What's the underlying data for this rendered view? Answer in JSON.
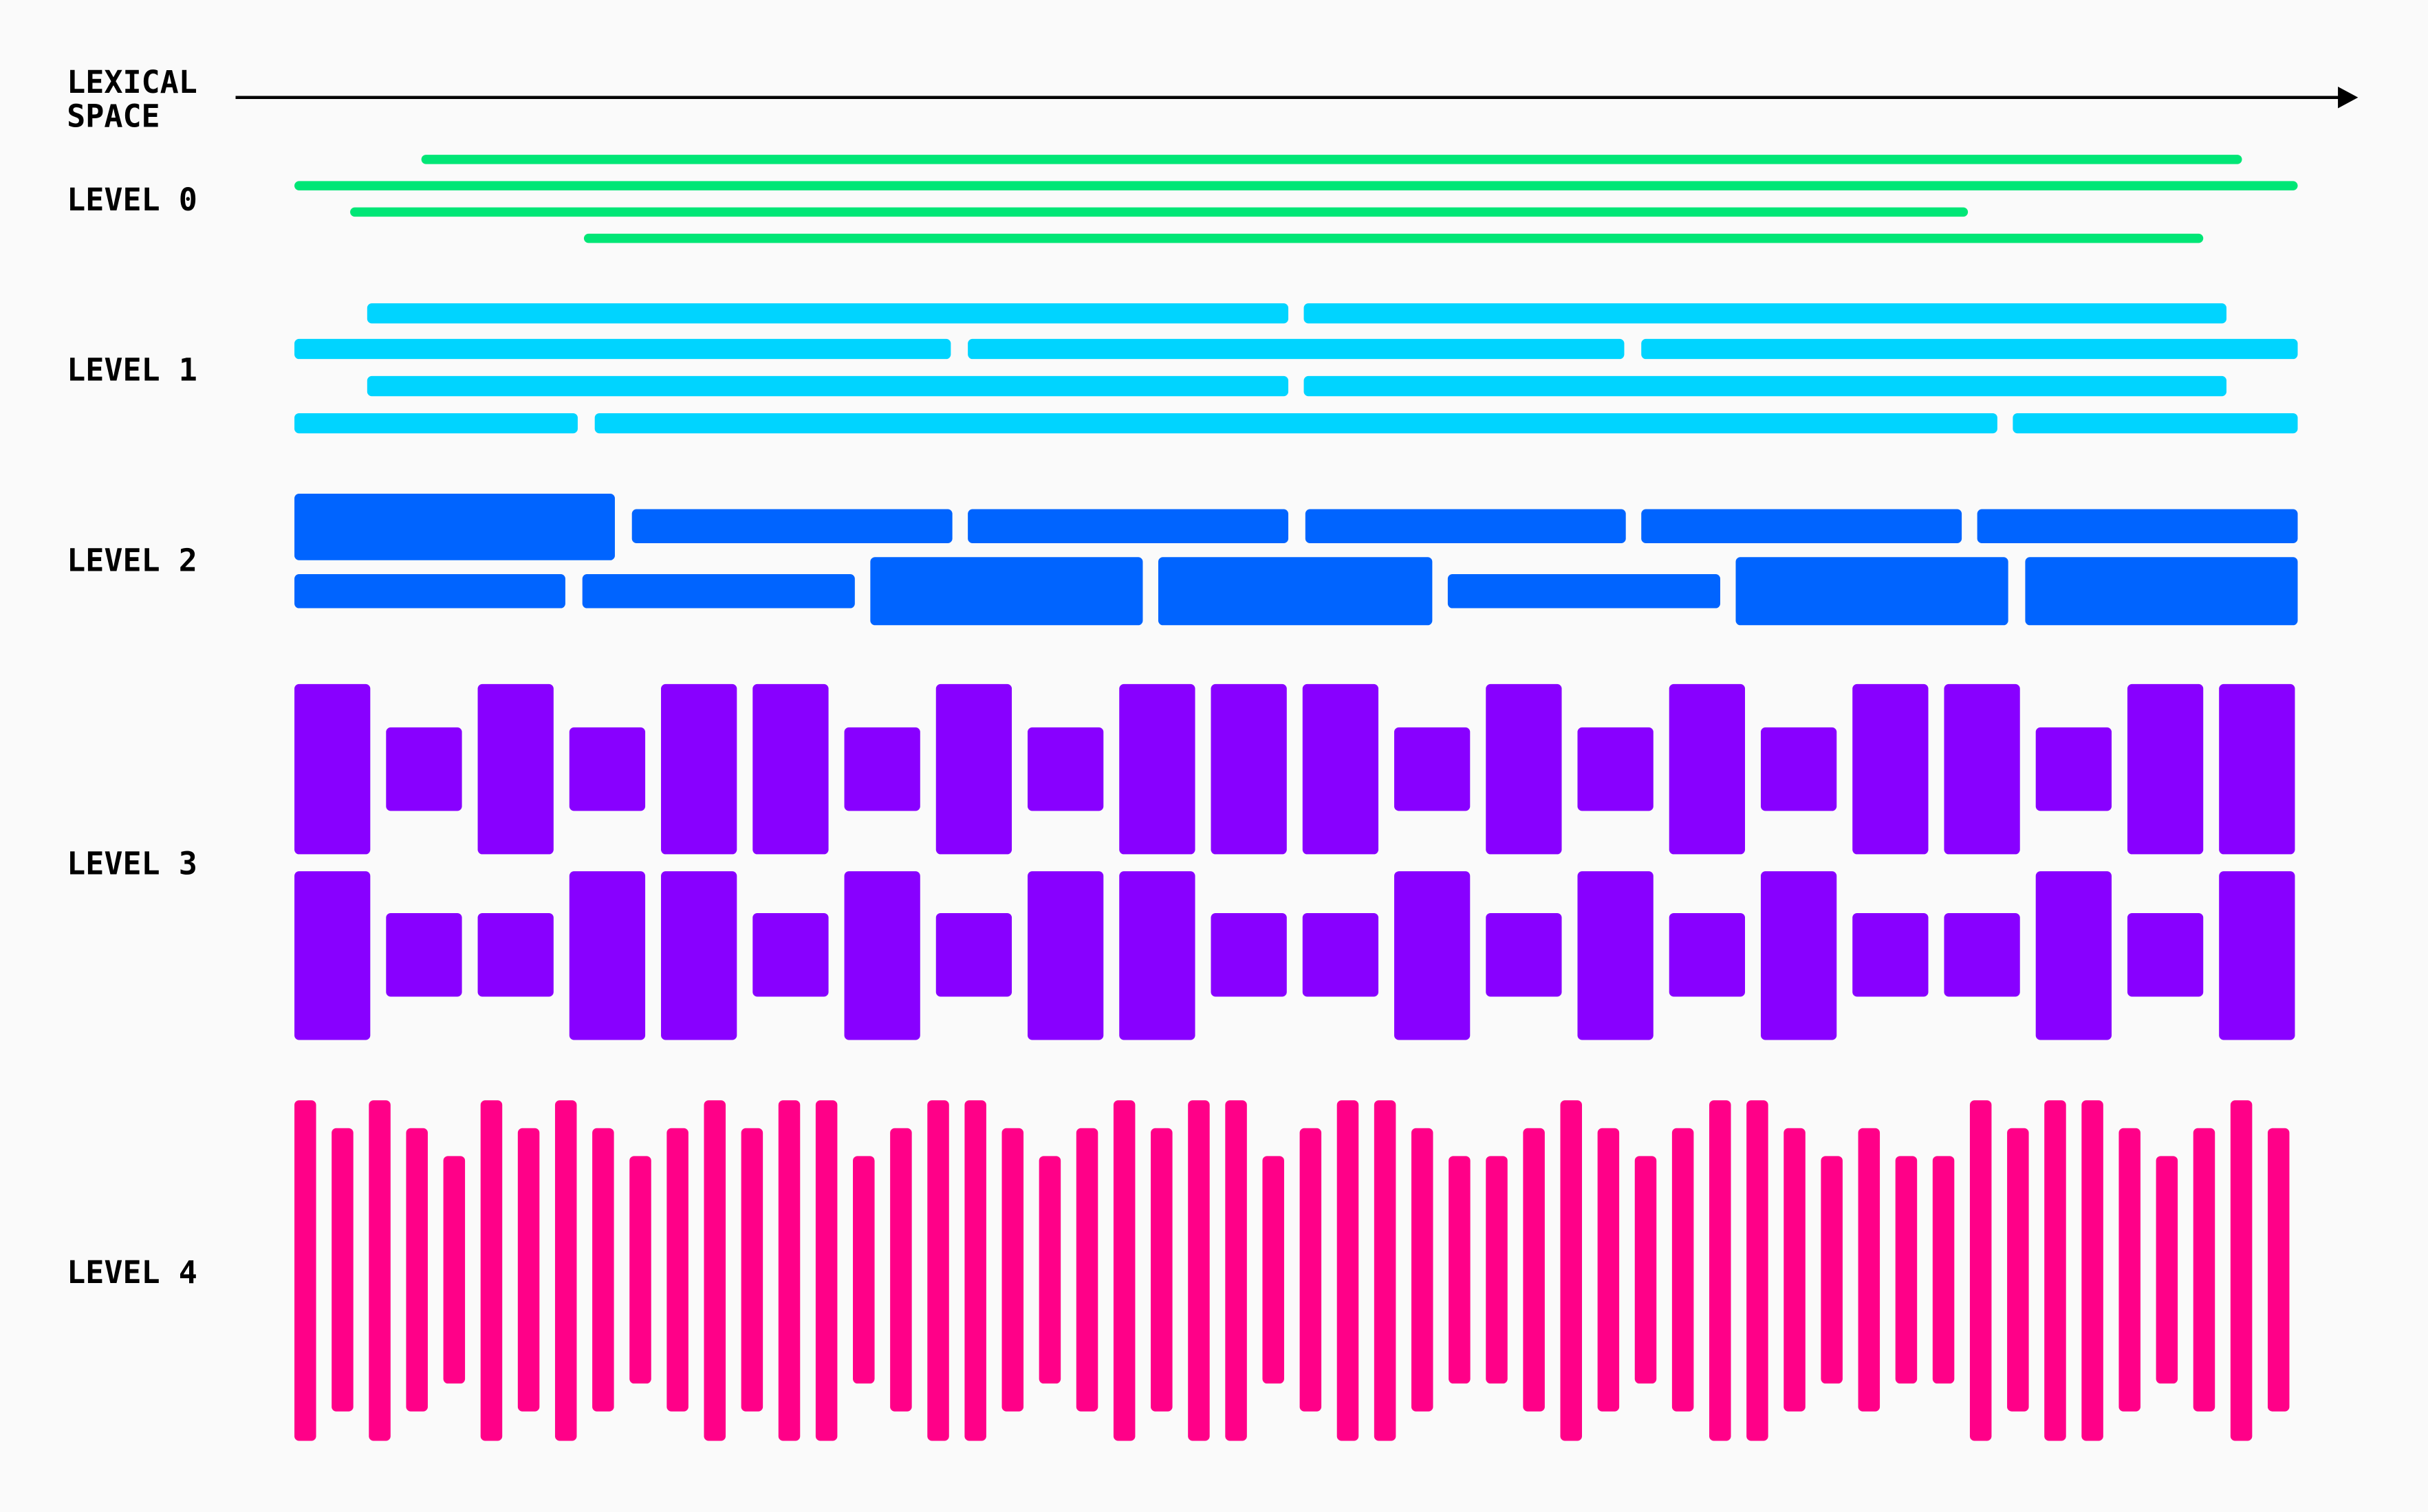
{
  "axis": {
    "label_line1": "LEXICAL",
    "label_line2": "SPACE"
  },
  "levels": [
    {
      "label": "LEVEL 0",
      "color": "#00e676"
    },
    {
      "label": "LEVEL 1",
      "color": "#00d4ff"
    },
    {
      "label": "LEVEL 2",
      "color": "#0064ff"
    },
    {
      "label": "LEVEL 3",
      "color": "#8800ff",
      "rows": [
        [
          "tall",
          "short",
          "tall",
          "short",
          "tall",
          "tall",
          "short",
          "tall",
          "short",
          "tall",
          "tall",
          "tall",
          "short",
          "tall",
          "short",
          "tall",
          "short",
          "tall",
          "tall",
          "short",
          "tall",
          "tall"
        ],
        [
          "tall",
          "short",
          "short",
          "tall",
          "tall",
          "short",
          "tall",
          "short",
          "tall",
          "tall",
          "short",
          "short",
          "tall",
          "short",
          "tall",
          "short",
          "tall",
          "short",
          "short",
          "tall",
          "short",
          "tall"
        ]
      ]
    },
    {
      "label": "LEVEL 4",
      "color": "#ff0088",
      "heights": [
        "full",
        "medium",
        "full",
        "medium",
        "short",
        "full",
        "medium",
        "full",
        "medium",
        "short",
        "medium",
        "full",
        "medium",
        "full",
        "full",
        "short",
        "medium",
        "full",
        "full",
        "medium",
        "short",
        "medium",
        "full",
        "medium",
        "full",
        "full",
        "short",
        "medium",
        "full",
        "full",
        "medium",
        "short",
        "short",
        "medium",
        "full",
        "medium",
        "short",
        "medium",
        "full",
        "full",
        "medium",
        "short",
        "medium",
        "short",
        "short",
        "full",
        "medium",
        "full",
        "full",
        "medium",
        "short",
        "medium",
        "full",
        "medium"
      ]
    }
  ]
}
